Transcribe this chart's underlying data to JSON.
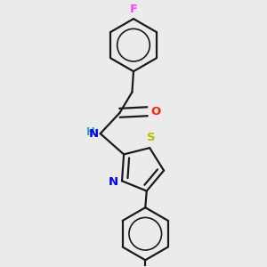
{
  "background_color": "#ebebeb",
  "bond_color": "#1a1a1a",
  "atom_colors": {
    "F": "#ff44ff",
    "O": "#ff2200",
    "N": "#0000ee",
    "S": "#bbbb00",
    "H": "#22aaaa",
    "C": "#1a1a1a"
  },
  "figsize": [
    3.0,
    3.0
  ],
  "dpi": 100,
  "lw": 1.6
}
